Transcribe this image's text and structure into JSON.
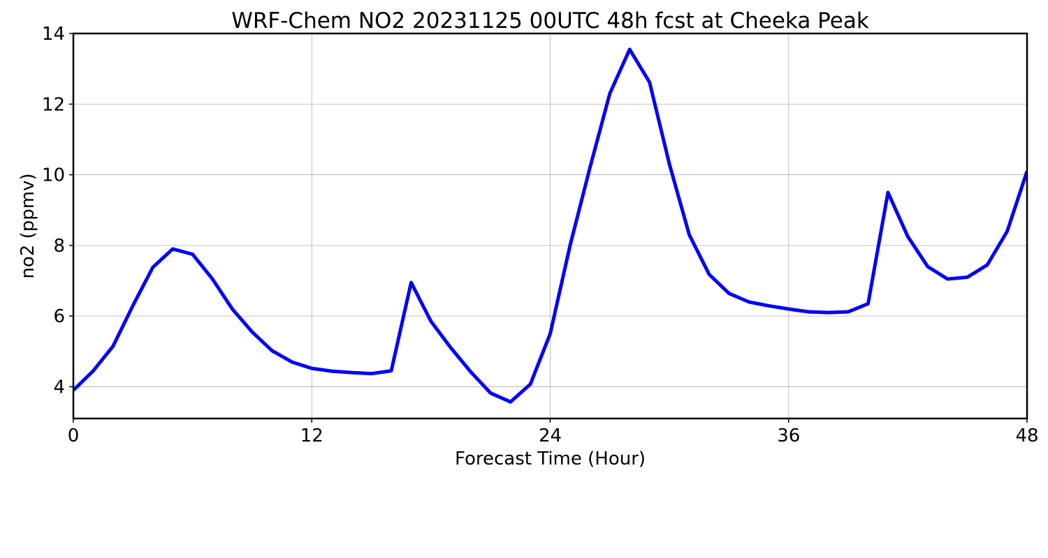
{
  "chart_data": {
    "type": "line",
    "title": "WRF-Chem NO2  20231125 00UTC 48h fcst at Cheeka Peak",
    "xlabel": "Forecast Time (Hour)",
    "ylabel": "no2  (ppmv)",
    "xlim": [
      0,
      48
    ],
    "ylim": [
      3.1,
      14.0
    ],
    "xticks": [
      0,
      12,
      24,
      36,
      48
    ],
    "yticks": [
      4,
      6,
      8,
      10,
      12,
      14
    ],
    "grid": true,
    "x": [
      0,
      1,
      2,
      3,
      4,
      5,
      6,
      7,
      8,
      9,
      10,
      11,
      12,
      13,
      14,
      15,
      16,
      17,
      18,
      19,
      20,
      21,
      22,
      23,
      24,
      25,
      26,
      27,
      28,
      29,
      30,
      31,
      32,
      33,
      34,
      35,
      36,
      37,
      38,
      39,
      40,
      41,
      42,
      43,
      44,
      45,
      46,
      47,
      48
    ],
    "series": [
      {
        "color": "#0000ff",
        "values": [
          3.9,
          4.45,
          5.15,
          6.3,
          7.38,
          7.9,
          7.75,
          7.05,
          6.2,
          5.55,
          5.02,
          4.7,
          4.52,
          4.44,
          4.4,
          4.37,
          4.45,
          6.95,
          5.85,
          5.1,
          4.42,
          3.82,
          3.57,
          4.07,
          5.5,
          8.0,
          10.2,
          12.3,
          13.55,
          12.62,
          10.3,
          8.3,
          7.18,
          6.64,
          6.4,
          6.29,
          6.2,
          6.12,
          6.1,
          6.12,
          6.35,
          9.5,
          8.25,
          7.4,
          7.05,
          7.1,
          7.45,
          8.4,
          10.1
        ]
      }
    ]
  }
}
